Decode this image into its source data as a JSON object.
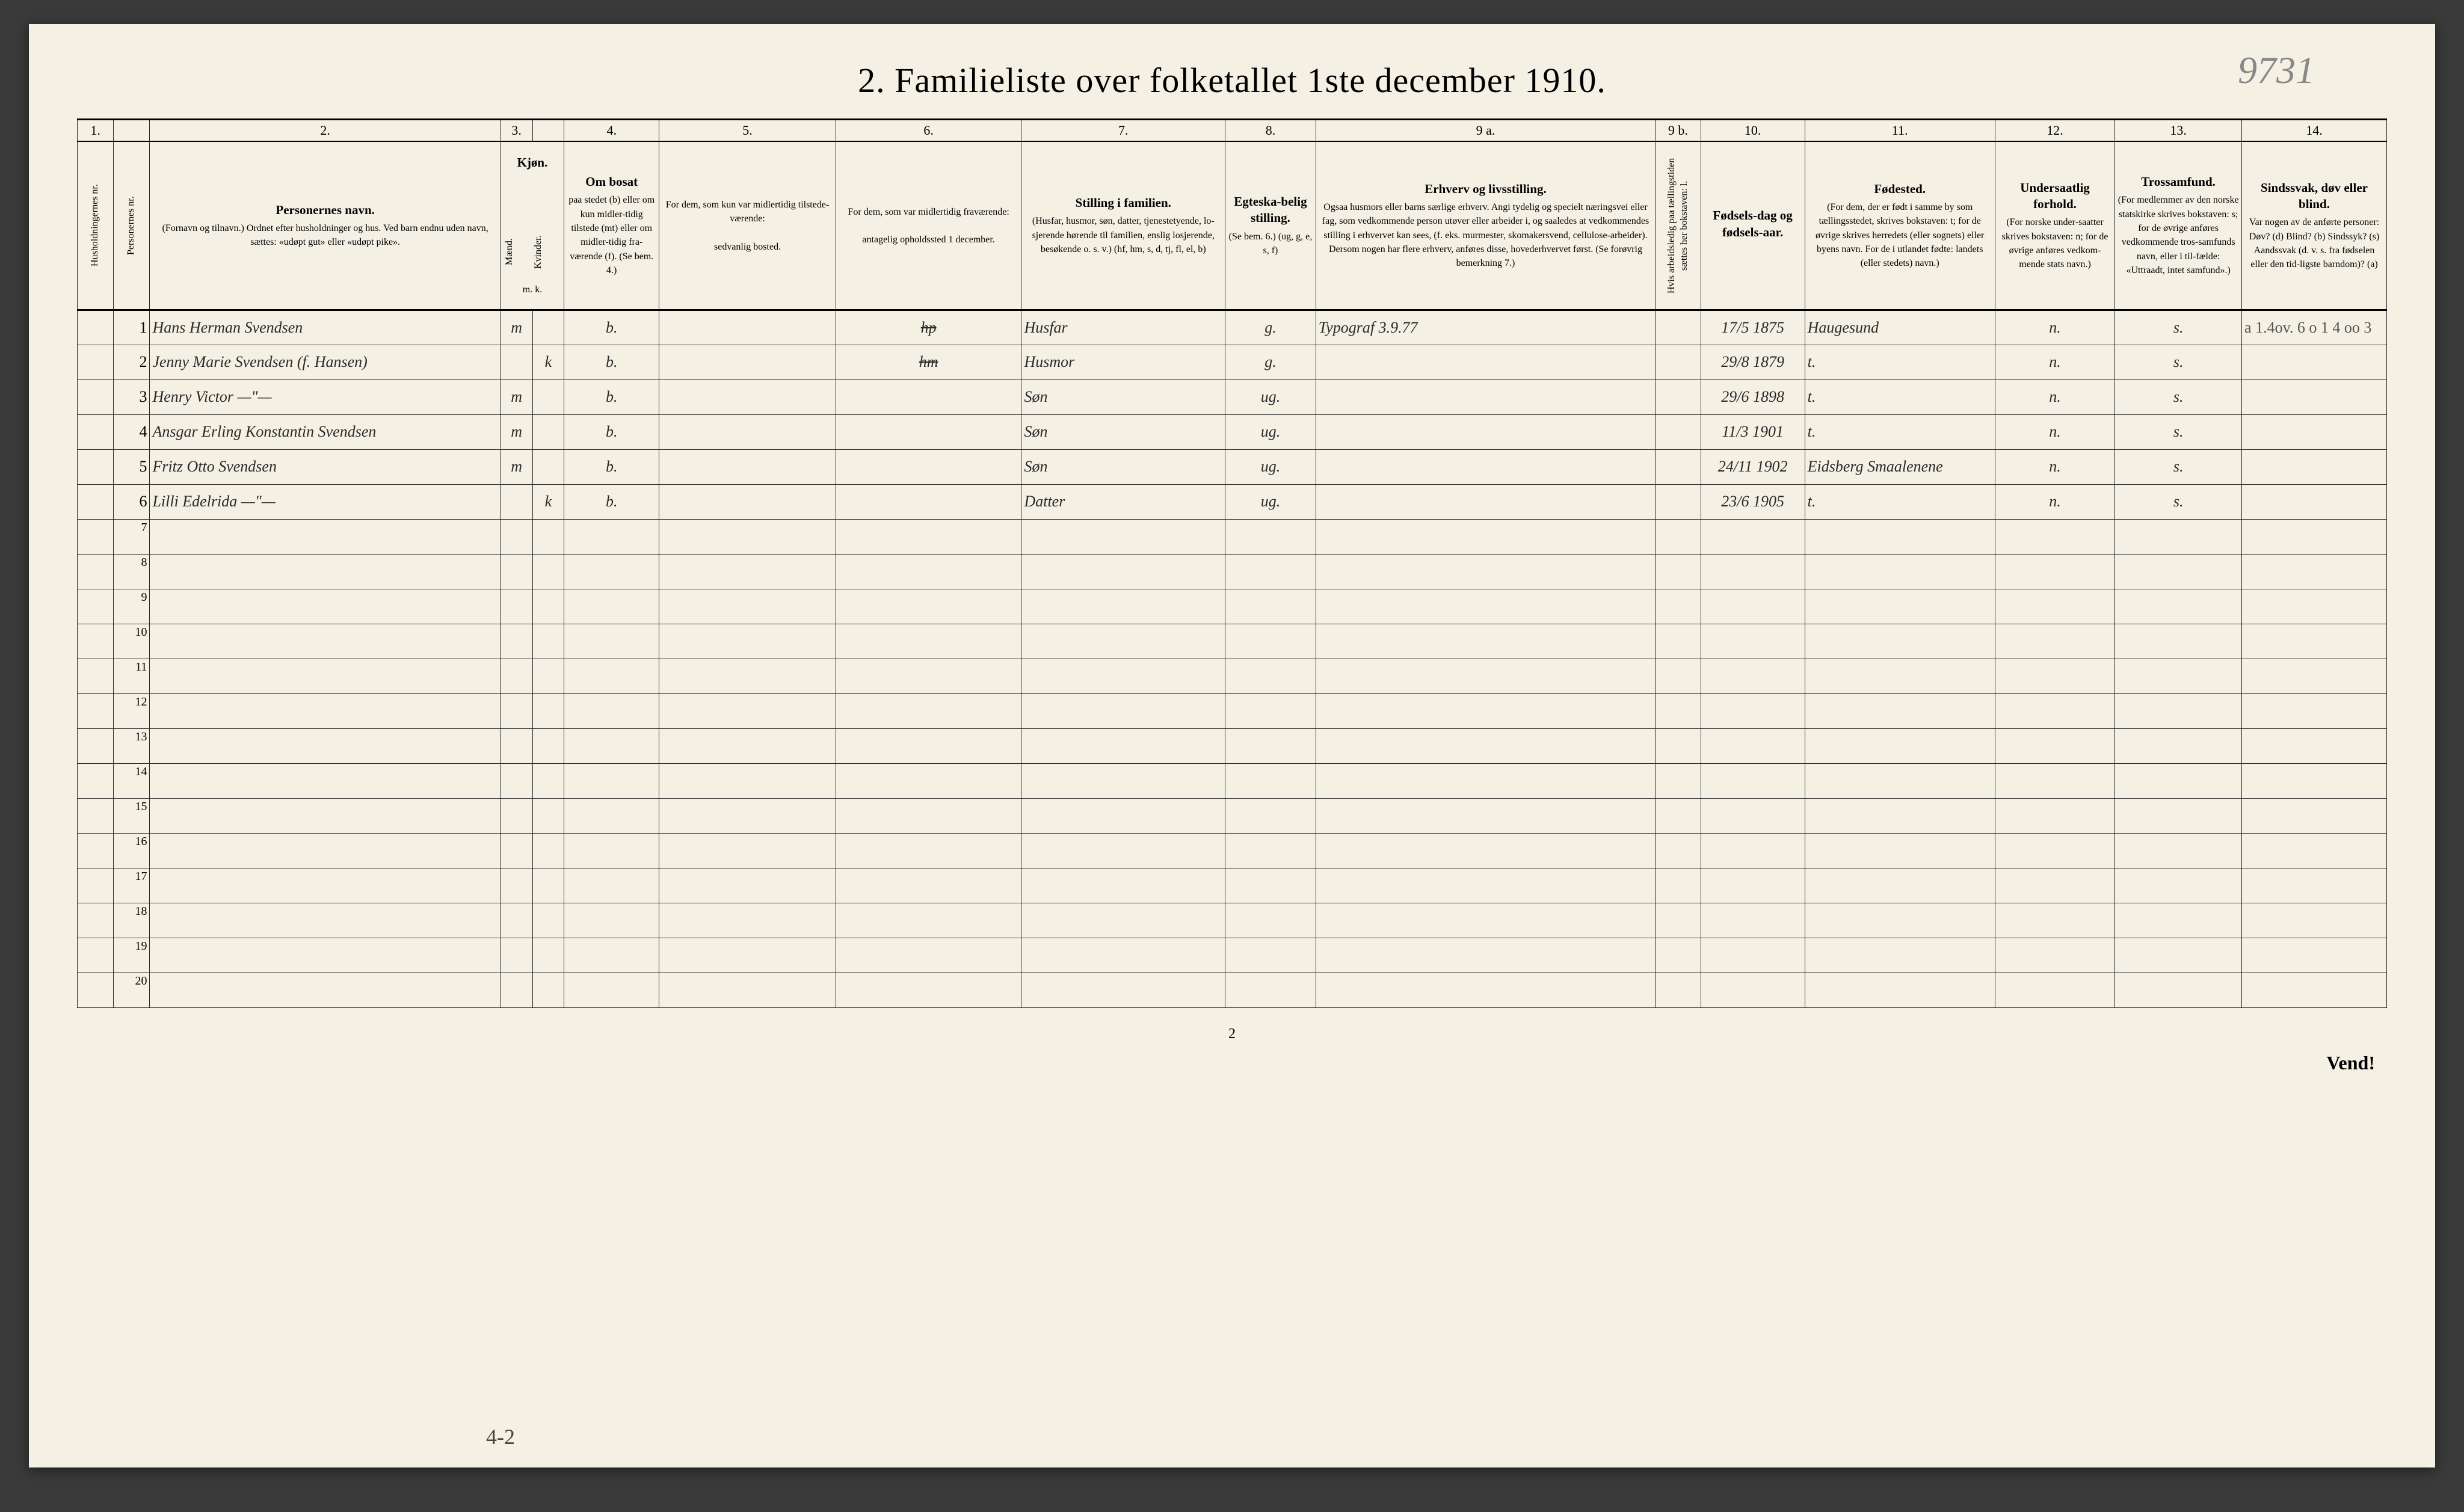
{
  "title": "2.   Familieliste over folketallet 1ste december 1910.",
  "page_number_handwritten": "9731",
  "bottom_page_number": "2",
  "vend_text": "Vend!",
  "bottom_annotation": "4-2",
  "column_numbers": [
    "1.",
    "",
    "2.",
    "3.",
    "",
    "4.",
    "5.",
    "6.",
    "7.",
    "8.",
    "9 a.",
    "9 b.",
    "10.",
    "11.",
    "12.",
    "13.",
    "14."
  ],
  "headers": {
    "c1": "Husholdningernes nr.",
    "c1b": "Personernes nr.",
    "c2_title": "Personernes navn.",
    "c2_sub": "(Fornavn og tilnavn.)\nOrdnet efter husholdninger og hus.\nVed barn endnu uden navn, sættes: «udøpt gut» eller «udøpt pike».",
    "c3_title": "Kjøn.",
    "c3_m": "Mænd.",
    "c3_k": "Kvinder.",
    "c3_mk": "m.  k.",
    "c4_title": "Om bosat",
    "c4_sub": "paa stedet (b) eller om kun midler-tidig tilstede (mt) eller om midler-tidig fra-værende (f). (Se bem. 4.)",
    "c5_title": "For dem, som kun var midlertidig tilstede-værende:",
    "c5_sub": "sedvanlig bosted.",
    "c6_title": "For dem, som var midlertidig fraværende:",
    "c6_sub": "antagelig opholdssted 1 december.",
    "c7_title": "Stilling i familien.",
    "c7_sub": "(Husfar, husmor, søn, datter, tjenestetyende, lo-sjerende hørende til familien, enslig losjerende, besøkende o. s. v.)\n(hf, hm, s, d, tj, fl, el, b)",
    "c8_title": "Egteska-belig stilling.",
    "c8_sub": "(Se bem. 6.)\n(ug, g, e, s, f)",
    "c9a_title": "Erhverv og livsstilling.",
    "c9a_sub": "Ogsaa husmors eller barns særlige erhverv. Angi tydelig og specielt næringsvei eller fag, som vedkommende person utøver eller arbeider i, og saaledes at vedkommendes stilling i erhvervet kan sees, (f. eks. murmester, skomakersvend, cellulose-arbeider). Dersom nogen har flere erhverv, anføres disse, hovederhvervet først.\n(Se forøvrig bemerkning 7.)",
    "c9b": "Hvis arbeidsledig paa tællingstiden sættes her bokstaven: l.",
    "c10_title": "Fødsels-dag og fødsels-aar.",
    "c11_title": "Fødested.",
    "c11_sub": "(For dem, der er født i samme by som tællingsstedet, skrives bokstaven: t; for de øvrige skrives herredets (eller sognets) eller byens navn. For de i utlandet fødte: landets (eller stedets) navn.)",
    "c12_title": "Undersaatlig forhold.",
    "c12_sub": "(For norske under-saatter skrives bokstaven: n; for de øvrige anføres vedkom-mende stats navn.)",
    "c13_title": "Trossamfund.",
    "c13_sub": "(For medlemmer av den norske statskirke skrives bokstaven: s; for de øvrige anføres vedkommende tros-samfunds navn, eller i til-fælde: «Uttraadt, intet samfund».)",
    "c14_title": "Sindssvak, døv eller blind.",
    "c14_sub": "Var nogen av de anførte personer:\nDøv?        (d)\nBlind?      (b)\nSindssyk?  (s)\nAandssvak (d. v. s. fra fødselen eller den tid-ligste barndom)? (a)"
  },
  "rows": [
    {
      "n": "1",
      "name": "Hans Herman Svendsen",
      "sex": "m",
      "bosat": "b.",
      "c5": "",
      "c6": "hp",
      "stilling": "Husfar",
      "egte": "g.",
      "erhverv": "Typograf   3.9.77",
      "dob": "17/5 1875",
      "fodested": "Haugesund",
      "und": "n.",
      "tros": "s.",
      "c14": "a   1.4ov. 6\no   1  4 oo  3"
    },
    {
      "n": "2",
      "name": "Jenny Marie Svendsen (f. Hansen)",
      "sex": "k",
      "bosat": "b.",
      "c5": "",
      "c6": "hm",
      "stilling": "Husmor",
      "egte": "g.",
      "erhverv": "",
      "dob": "29/8 1879",
      "fodested": "t.",
      "und": "n.",
      "tros": "s.",
      "c14": ""
    },
    {
      "n": "3",
      "name": "Henry Victor    —\"—",
      "sex": "m",
      "bosat": "b.",
      "c5": "",
      "c6": "",
      "stilling": "Søn",
      "egte": "ug.",
      "erhverv": "",
      "dob": "29/6 1898",
      "fodested": "t.",
      "und": "n.",
      "tros": "s.",
      "c14": ""
    },
    {
      "n": "4",
      "name": "Ansgar Erling Konstantin Svendsen",
      "sex": "m",
      "bosat": "b.",
      "c5": "",
      "c6": "",
      "stilling": "Søn",
      "egte": "ug.",
      "erhverv": "",
      "dob": "11/3 1901",
      "fodested": "t.",
      "und": "n.",
      "tros": "s.",
      "c14": ""
    },
    {
      "n": "5",
      "name": "Fritz Otto Svendsen",
      "sex": "m",
      "bosat": "b.",
      "c5": "",
      "c6": "",
      "stilling": "Søn",
      "egte": "ug.",
      "erhverv": "",
      "dob": "24/11 1902",
      "fodested": "Eidsberg Smaalenene",
      "und": "n.",
      "tros": "s.",
      "c14": ""
    },
    {
      "n": "6",
      "name": "Lilli Edelrida  —\"—",
      "sex": "k",
      "bosat": "b.",
      "c5": "",
      "c6": "",
      "stilling": "Datter",
      "egte": "ug.",
      "erhverv": "",
      "dob": "23/6 1905",
      "fodested": "t.",
      "und": "n.",
      "tros": "s.",
      "c14": ""
    }
  ],
  "empty_row_numbers": [
    "7",
    "8",
    "9",
    "10",
    "11",
    "12",
    "13",
    "14",
    "15",
    "16",
    "17",
    "18",
    "19",
    "20"
  ],
  "col_widths_pct": [
    1.6,
    1.6,
    15.5,
    1.4,
    1.4,
    4.2,
    7.8,
    8.2,
    9.0,
    4.0,
    15.0,
    2.0,
    4.6,
    8.4,
    5.3,
    5.6,
    6.4
  ],
  "colors": {
    "page_bg": "#f4f0e4",
    "border": "#2a2a2a",
    "ink": "#2a2a2a",
    "pencil": "#888888"
  }
}
